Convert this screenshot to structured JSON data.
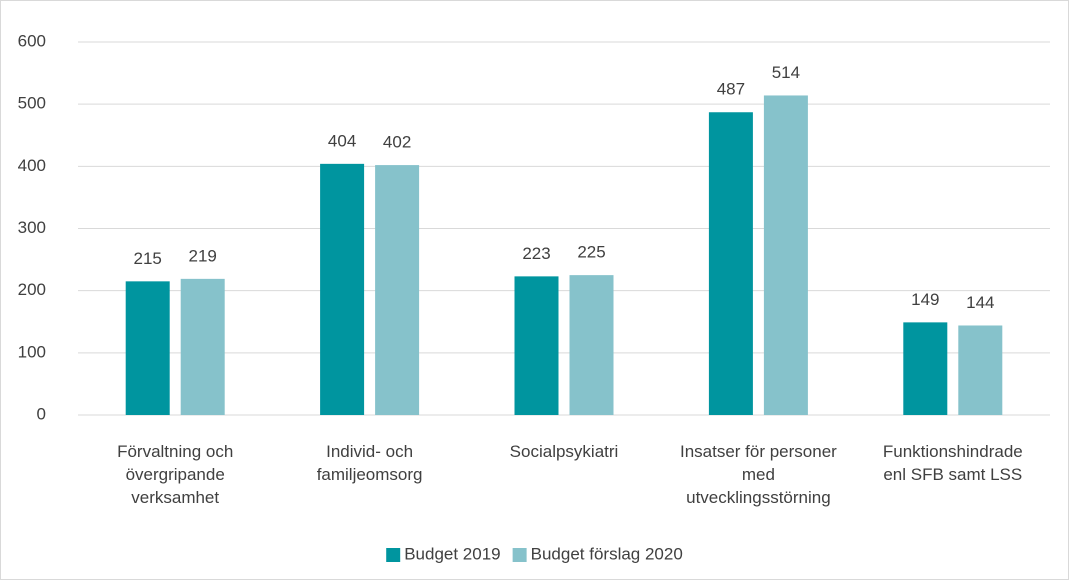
{
  "chart_data": {
    "type": "bar",
    "categories": [
      "Förvaltning och övergripande verksamhet",
      "Individ- och familjeomsorg",
      "Socialpsykiatri",
      "Insatser för personer med utvecklingsstörning",
      "Funktionshindrade enl SFB samt LSS"
    ],
    "series": [
      {
        "name": "Budget 2019",
        "color": "#00959f",
        "values": [
          215,
          404,
          223,
          487,
          149
        ]
      },
      {
        "name": "Budget förslag 2020",
        "color": "#86c2cb",
        "values": [
          219,
          402,
          225,
          514,
          144
        ]
      }
    ],
    "ylim": [
      0,
      600
    ],
    "yticks": [
      0,
      100,
      200,
      300,
      400,
      500,
      600
    ],
    "grid": true,
    "legend": "bottom"
  }
}
